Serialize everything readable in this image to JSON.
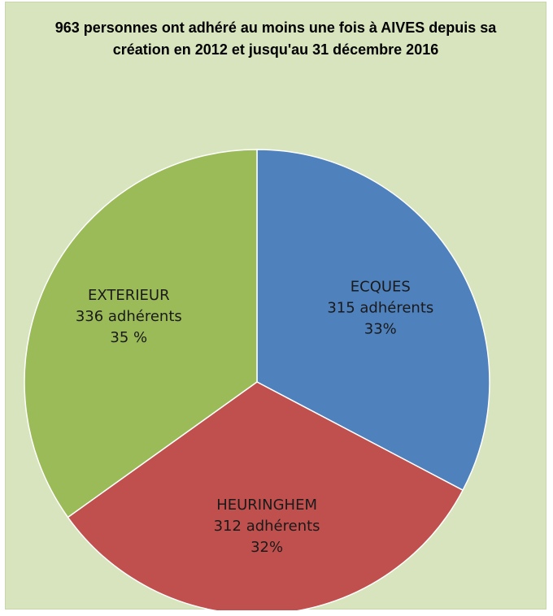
{
  "chart_data": {
    "type": "pie",
    "title_lines": [
      "963 personnes ont  adhéré au moins une fois à  AIVES depuis sa",
      "création en 2012 et jusqu'au 31 décembre 2016"
    ],
    "slices": [
      {
        "category": "ECQUES",
        "value": 315,
        "count_label": "315 adhérents",
        "percent_label": "33%",
        "color": "#4f81bd"
      },
      {
        "category": "HEURINGHEM",
        "value": 312,
        "count_label": "312 adhérents",
        "percent_label": "32%",
        "color": "#c0504d"
      },
      {
        "category": "EXTERIEUR",
        "value": 336,
        "count_label": "336 adhérents",
        "percent_label": "35 %",
        "color": "#9bbb59"
      }
    ],
    "start_angle": "12 o'clock",
    "direction": "clockwise",
    "legend": "none"
  },
  "colors": {
    "background": "#d7e4bd",
    "slice_border": "#ffffff"
  }
}
